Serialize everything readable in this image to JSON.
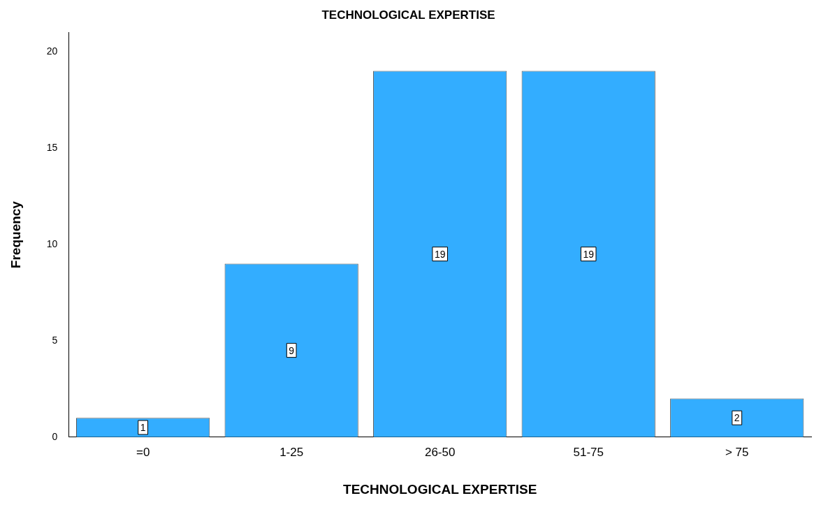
{
  "chart_data": {
    "type": "bar",
    "title": "TECHNOLOGICAL EXPERTISE",
    "xlabel": "TECHNOLOGICAL EXPERTISE",
    "ylabel": "Frequency",
    "categories": [
      "=0",
      "1-25",
      "26-50",
      "51-75",
      "> 75"
    ],
    "values": [
      1,
      9,
      19,
      19,
      2
    ],
    "color": "#33adff",
    "ylim": [
      0,
      21
    ],
    "yticks": [
      0,
      5,
      10,
      15,
      20
    ],
    "grid": false,
    "legend": false,
    "data_labels": true
  }
}
